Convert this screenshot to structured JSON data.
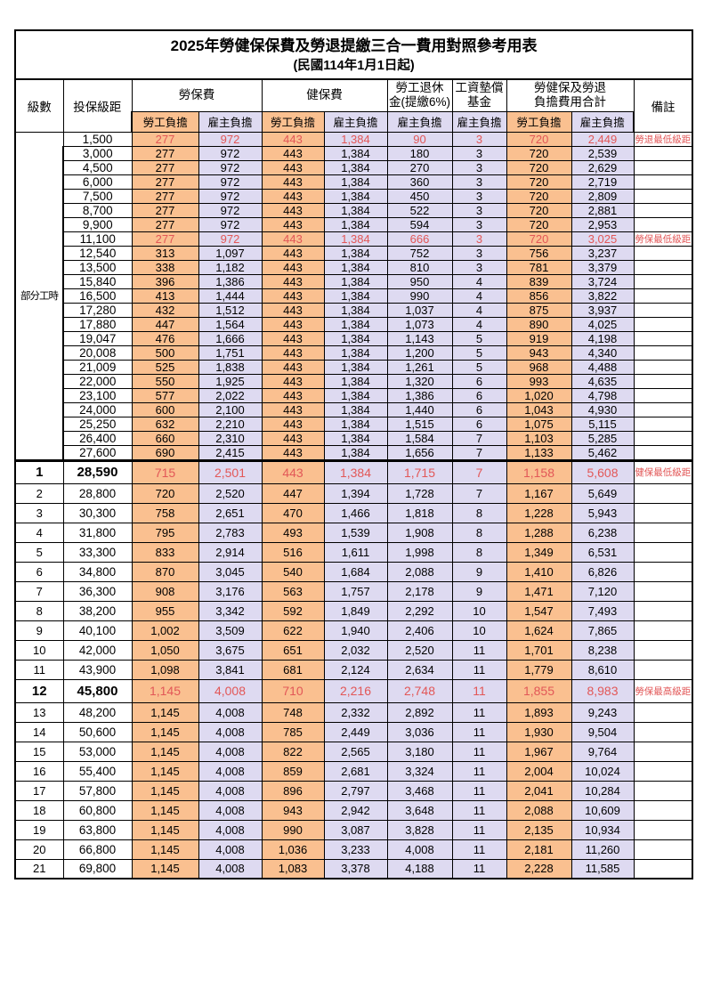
{
  "title": "2025年勞健保保費及勞退提繳三合一費用對照參考用表",
  "subtitle": "(民國114年1月1日起)",
  "colors": {
    "worker_column_bg": "#FAC090",
    "employer_column_bg": "#DEDAF1",
    "highlight_text": "#E25757",
    "border": "#000000"
  },
  "header": {
    "level": "級數",
    "bracket": "投保級距",
    "labor_fee": "勞保費",
    "health_fee": "健保費",
    "pension_line1": "勞工退休",
    "pension_line2": "金(提繳6%)",
    "wage_fund_line1": "工資墊償",
    "wage_fund_line2": "基金",
    "total_line1": "勞健保及勞退",
    "total_line2": "負擔費用合計",
    "remark": "備註",
    "worker": "勞工負擔",
    "employer": "雇主負擔"
  },
  "parttime_label": "部分工時",
  "parttime_rowspan": 23,
  "rows": [
    {
      "level": "",
      "bracket": "1,500",
      "values": [
        "277",
        "972",
        "443",
        "1,384",
        "90",
        "3",
        "720",
        "2,449"
      ],
      "remark": "勞退最低級距",
      "highlight": true
    },
    {
      "level": "",
      "bracket": "3,000",
      "values": [
        "277",
        "972",
        "443",
        "1,384",
        "180",
        "3",
        "720",
        "2,539"
      ],
      "remark": ""
    },
    {
      "level": "",
      "bracket": "4,500",
      "values": [
        "277",
        "972",
        "443",
        "1,384",
        "270",
        "3",
        "720",
        "2,629"
      ],
      "remark": ""
    },
    {
      "level": "",
      "bracket": "6,000",
      "values": [
        "277",
        "972",
        "443",
        "1,384",
        "360",
        "3",
        "720",
        "2,719"
      ],
      "remark": ""
    },
    {
      "level": "",
      "bracket": "7,500",
      "values": [
        "277",
        "972",
        "443",
        "1,384",
        "450",
        "3",
        "720",
        "2,809"
      ],
      "remark": ""
    },
    {
      "level": "",
      "bracket": "8,700",
      "values": [
        "277",
        "972",
        "443",
        "1,384",
        "522",
        "3",
        "720",
        "2,881"
      ],
      "remark": ""
    },
    {
      "level": "",
      "bracket": "9,900",
      "values": [
        "277",
        "972",
        "443",
        "1,384",
        "594",
        "3",
        "720",
        "2,953"
      ],
      "remark": ""
    },
    {
      "level": "",
      "bracket": "11,100",
      "values": [
        "277",
        "972",
        "443",
        "1,384",
        "666",
        "3",
        "720",
        "3,025"
      ],
      "remark": "勞保最低級距",
      "highlight": true
    },
    {
      "level": "",
      "bracket": "12,540",
      "values": [
        "313",
        "1,097",
        "443",
        "1,384",
        "752",
        "3",
        "756",
        "3,237"
      ],
      "remark": ""
    },
    {
      "level": "",
      "bracket": "13,500",
      "values": [
        "338",
        "1,182",
        "443",
        "1,384",
        "810",
        "3",
        "781",
        "3,379"
      ],
      "remark": ""
    },
    {
      "level": "",
      "bracket": "15,840",
      "values": [
        "396",
        "1,386",
        "443",
        "1,384",
        "950",
        "4",
        "839",
        "3,724"
      ],
      "remark": ""
    },
    {
      "level": "",
      "bracket": "16,500",
      "values": [
        "413",
        "1,444",
        "443",
        "1,384",
        "990",
        "4",
        "856",
        "3,822"
      ],
      "remark": ""
    },
    {
      "level": "",
      "bracket": "17,280",
      "values": [
        "432",
        "1,512",
        "443",
        "1,384",
        "1,037",
        "4",
        "875",
        "3,937"
      ],
      "remark": ""
    },
    {
      "level": "",
      "bracket": "17,880",
      "values": [
        "447",
        "1,564",
        "443",
        "1,384",
        "1,073",
        "4",
        "890",
        "4,025"
      ],
      "remark": ""
    },
    {
      "level": "",
      "bracket": "19,047",
      "values": [
        "476",
        "1,666",
        "443",
        "1,384",
        "1,143",
        "5",
        "919",
        "4,198"
      ],
      "remark": ""
    },
    {
      "level": "",
      "bracket": "20,008",
      "values": [
        "500",
        "1,751",
        "443",
        "1,384",
        "1,200",
        "5",
        "943",
        "4,340"
      ],
      "remark": ""
    },
    {
      "level": "",
      "bracket": "21,009",
      "values": [
        "525",
        "1,838",
        "443",
        "1,384",
        "1,261",
        "5",
        "968",
        "4,488"
      ],
      "remark": ""
    },
    {
      "level": "",
      "bracket": "22,000",
      "values": [
        "550",
        "1,925",
        "443",
        "1,384",
        "1,320",
        "6",
        "993",
        "4,635"
      ],
      "remark": ""
    },
    {
      "level": "",
      "bracket": "23,100",
      "values": [
        "577",
        "2,022",
        "443",
        "1,384",
        "1,386",
        "6",
        "1,020",
        "4,798"
      ],
      "remark": ""
    },
    {
      "level": "",
      "bracket": "24,000",
      "values": [
        "600",
        "2,100",
        "443",
        "1,384",
        "1,440",
        "6",
        "1,043",
        "4,930"
      ],
      "remark": ""
    },
    {
      "level": "",
      "bracket": "25,250",
      "values": [
        "632",
        "2,210",
        "443",
        "1,384",
        "1,515",
        "6",
        "1,075",
        "5,115"
      ],
      "remark": ""
    },
    {
      "level": "",
      "bracket": "26,400",
      "values": [
        "660",
        "2,310",
        "443",
        "1,384",
        "1,584",
        "7",
        "1,103",
        "5,285"
      ],
      "remark": ""
    },
    {
      "level": "",
      "bracket": "27,600",
      "values": [
        "690",
        "2,415",
        "443",
        "1,384",
        "1,656",
        "7",
        "1,133",
        "5,462"
      ],
      "remark": ""
    },
    {
      "level": "1",
      "bracket": "28,590",
      "values": [
        "715",
        "2,501",
        "443",
        "1,384",
        "1,715",
        "7",
        "1,158",
        "5,608"
      ],
      "remark": "健保最低級距",
      "highlight": true,
      "bold": true,
      "sep": true
    },
    {
      "level": "2",
      "bracket": "28,800",
      "values": [
        "720",
        "2,520",
        "447",
        "1,394",
        "1,728",
        "7",
        "1,167",
        "5,649"
      ],
      "remark": ""
    },
    {
      "level": "3",
      "bracket": "30,300",
      "values": [
        "758",
        "2,651",
        "470",
        "1,466",
        "1,818",
        "8",
        "1,228",
        "5,943"
      ],
      "remark": ""
    },
    {
      "level": "4",
      "bracket": "31,800",
      "values": [
        "795",
        "2,783",
        "493",
        "1,539",
        "1,908",
        "8",
        "1,288",
        "6,238"
      ],
      "remark": ""
    },
    {
      "level": "5",
      "bracket": "33,300",
      "values": [
        "833",
        "2,914",
        "516",
        "1,611",
        "1,998",
        "8",
        "1,349",
        "6,531"
      ],
      "remark": ""
    },
    {
      "level": "6",
      "bracket": "34,800",
      "values": [
        "870",
        "3,045",
        "540",
        "1,684",
        "2,088",
        "9",
        "1,410",
        "6,826"
      ],
      "remark": ""
    },
    {
      "level": "7",
      "bracket": "36,300",
      "values": [
        "908",
        "3,176",
        "563",
        "1,757",
        "2,178",
        "9",
        "1,471",
        "7,120"
      ],
      "remark": ""
    },
    {
      "level": "8",
      "bracket": "38,200",
      "values": [
        "955",
        "3,342",
        "592",
        "1,849",
        "2,292",
        "10",
        "1,547",
        "7,493"
      ],
      "remark": ""
    },
    {
      "level": "9",
      "bracket": "40,100",
      "values": [
        "1,002",
        "3,509",
        "622",
        "1,940",
        "2,406",
        "10",
        "1,624",
        "7,865"
      ],
      "remark": ""
    },
    {
      "level": "10",
      "bracket": "42,000",
      "values": [
        "1,050",
        "3,675",
        "651",
        "2,032",
        "2,520",
        "11",
        "1,701",
        "8,238"
      ],
      "remark": ""
    },
    {
      "level": "11",
      "bracket": "43,900",
      "values": [
        "1,098",
        "3,841",
        "681",
        "2,124",
        "2,634",
        "11",
        "1,779",
        "8,610"
      ],
      "remark": ""
    },
    {
      "level": "12",
      "bracket": "45,800",
      "values": [
        "1,145",
        "4,008",
        "710",
        "2,216",
        "2,748",
        "11",
        "1,855",
        "8,983"
      ],
      "remark": "勞保最高級距",
      "highlight": true,
      "bold": true
    },
    {
      "level": "13",
      "bracket": "48,200",
      "values": [
        "1,145",
        "4,008",
        "748",
        "2,332",
        "2,892",
        "11",
        "1,893",
        "9,243"
      ],
      "remark": ""
    },
    {
      "level": "14",
      "bracket": "50,600",
      "values": [
        "1,145",
        "4,008",
        "785",
        "2,449",
        "3,036",
        "11",
        "1,930",
        "9,504"
      ],
      "remark": ""
    },
    {
      "level": "15",
      "bracket": "53,000",
      "values": [
        "1,145",
        "4,008",
        "822",
        "2,565",
        "3,180",
        "11",
        "1,967",
        "9,764"
      ],
      "remark": ""
    },
    {
      "level": "16",
      "bracket": "55,400",
      "values": [
        "1,145",
        "4,008",
        "859",
        "2,681",
        "3,324",
        "11",
        "2,004",
        "10,024"
      ],
      "remark": ""
    },
    {
      "level": "17",
      "bracket": "57,800",
      "values": [
        "1,145",
        "4,008",
        "896",
        "2,797",
        "3,468",
        "11",
        "2,041",
        "10,284"
      ],
      "remark": ""
    },
    {
      "level": "18",
      "bracket": "60,800",
      "values": [
        "1,145",
        "4,008",
        "943",
        "2,942",
        "3,648",
        "11",
        "2,088",
        "10,609"
      ],
      "remark": ""
    },
    {
      "level": "19",
      "bracket": "63,800",
      "values": [
        "1,145",
        "4,008",
        "990",
        "3,087",
        "3,828",
        "11",
        "2,135",
        "10,934"
      ],
      "remark": ""
    },
    {
      "level": "20",
      "bracket": "66,800",
      "values": [
        "1,145",
        "4,008",
        "1,036",
        "3,233",
        "4,008",
        "11",
        "2,181",
        "11,260"
      ],
      "remark": ""
    },
    {
      "level": "21",
      "bracket": "69,800",
      "values": [
        "1,145",
        "4,008",
        "1,083",
        "3,378",
        "4,188",
        "11",
        "2,228",
        "11,585"
      ],
      "remark": ""
    }
  ]
}
